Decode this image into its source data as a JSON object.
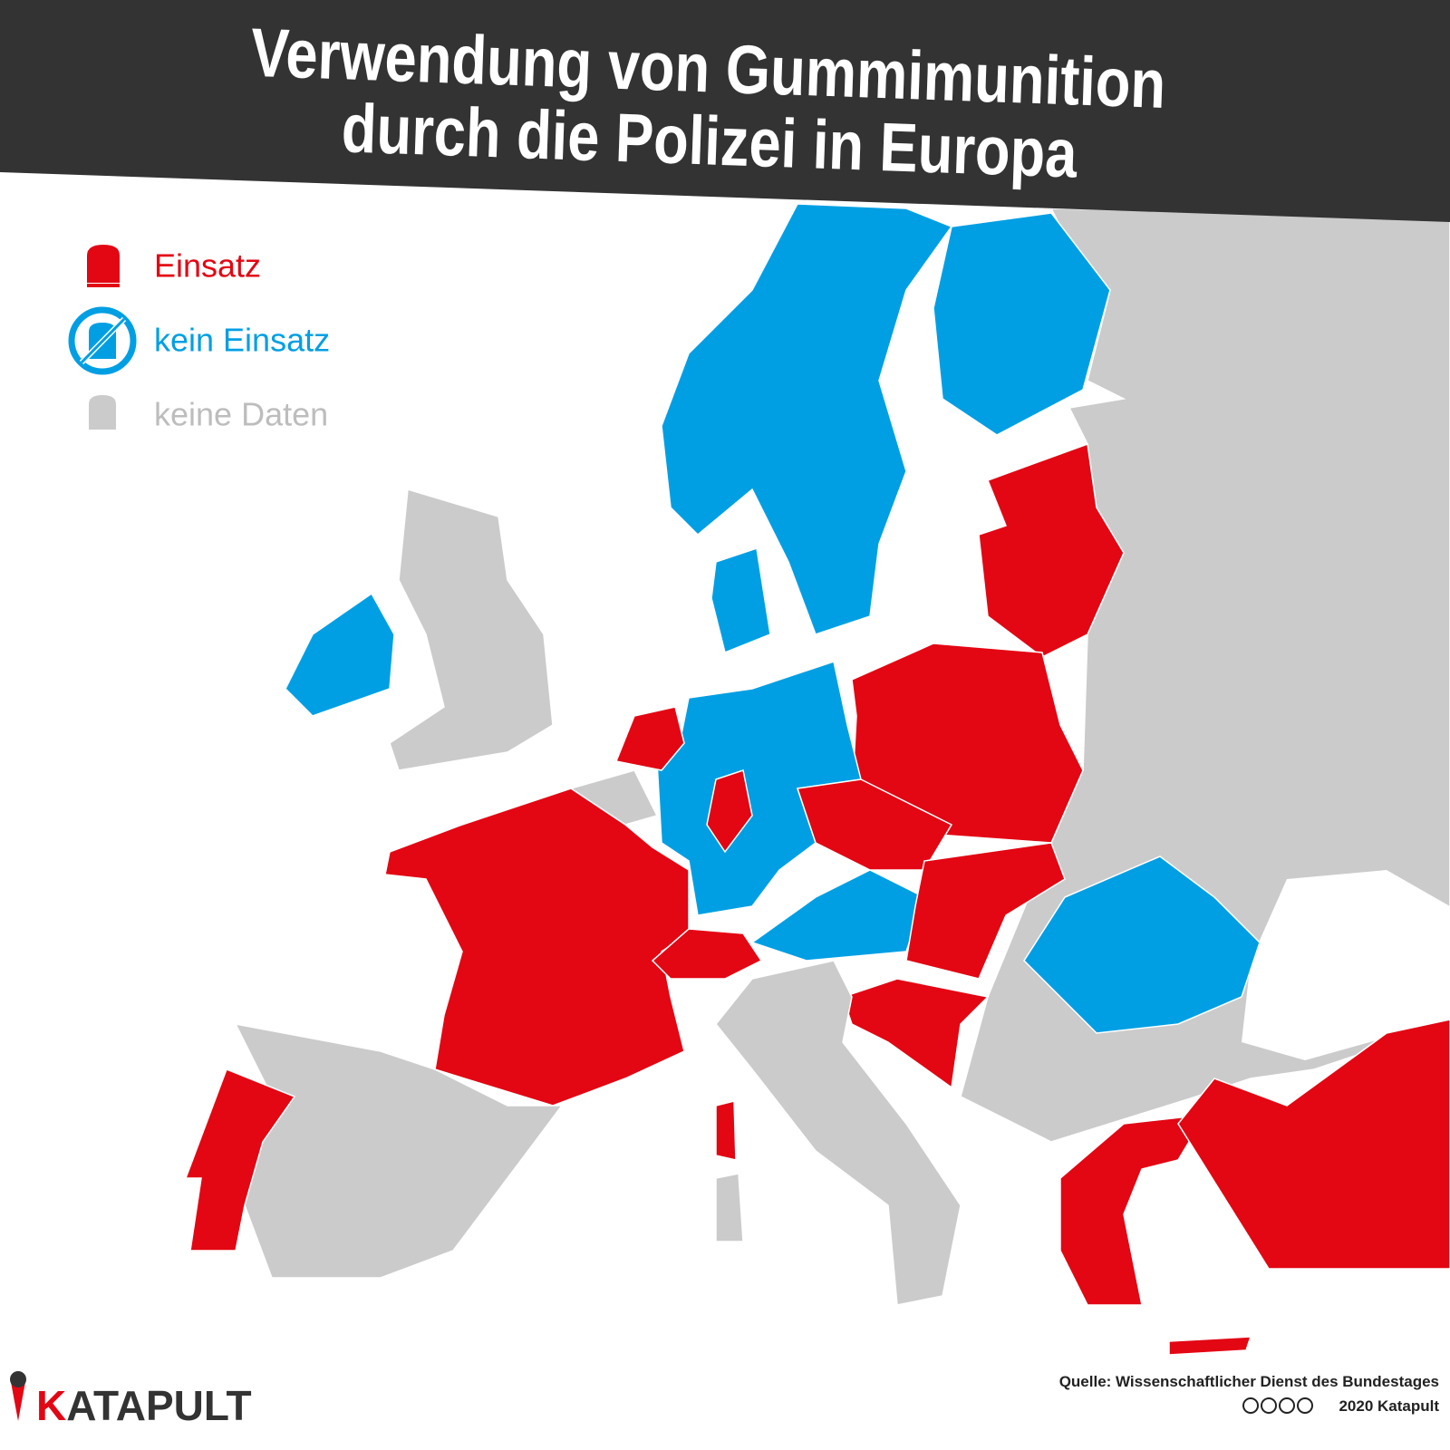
{
  "header": {
    "title_lines": [
      "Verwendung von Gummimunition",
      "durch die Polizei in Europa"
    ]
  },
  "legend": [
    {
      "label": "Einsatz"
    },
    {
      "label": "kein Einsatz"
    },
    {
      "label": "keine Daten"
    }
  ],
  "footer": {
    "logo": "KATAPULT",
    "source": "Quelle: Wissenschaftlicher Dienst des Bundestages",
    "copyright": "2020 Katapult"
  }
}
